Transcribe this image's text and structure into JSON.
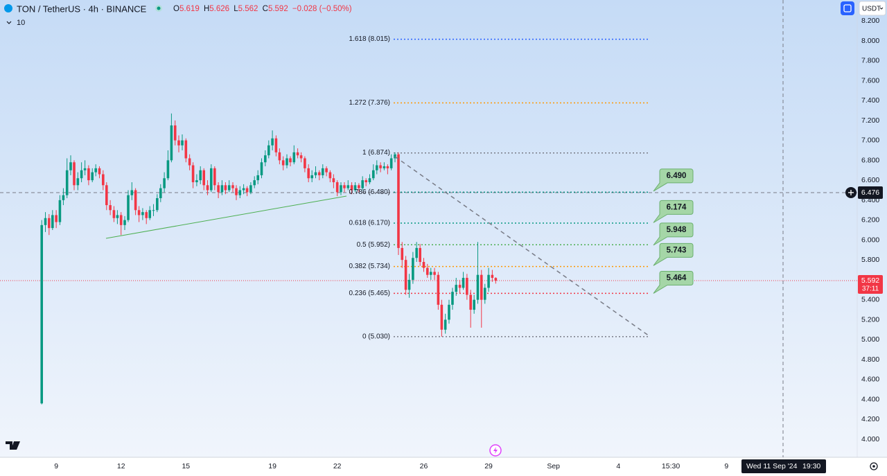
{
  "header": {
    "symbol": "TON / TetherUS · 4h · BINANCE",
    "ohlc_labels": [
      "O",
      "H",
      "L",
      "C"
    ],
    "change": "−0.028 (−0.50%)",
    "volume_toggle": "10",
    "currency": "USDT"
  },
  "chart_data": {
    "type": "candlestick",
    "x": [
      8.33,
      8.5,
      8.67,
      8.83,
      9,
      9.17,
      9.33,
      9.5,
      9.67,
      9.83,
      10,
      10.17,
      10.33,
      10.5,
      10.67,
      10.83,
      11,
      11.17,
      11.33,
      11.5,
      11.67,
      11.83,
      12,
      12.17,
      12.33,
      12.5,
      12.67,
      12.83,
      13,
      13.17,
      13.33,
      13.5,
      13.67,
      13.83,
      14,
      14.17,
      14.33,
      14.5,
      14.67,
      14.83,
      15,
      15.17,
      15.33,
      15.5,
      15.67,
      15.83,
      16,
      16.17,
      16.33,
      16.5,
      16.67,
      16.83,
      17,
      17.17,
      17.33,
      17.5,
      17.67,
      17.83,
      18,
      18.17,
      18.33,
      18.5,
      18.67,
      18.83,
      19,
      19.17,
      19.33,
      19.5,
      19.67,
      19.83,
      20,
      20.17,
      20.33,
      20.5,
      20.67,
      20.83,
      21,
      21.17,
      21.33,
      21.5,
      21.67,
      21.83,
      22,
      22.17,
      22.33,
      22.5,
      22.67,
      22.83,
      23,
      23.17,
      23.33,
      23.5,
      23.67,
      23.83,
      24,
      24.17,
      24.33,
      24.5,
      24.67,
      24.83,
      25,
      25.17,
      25.33,
      25.5,
      25.67,
      25.83,
      26,
      26.17,
      26.33,
      26.5,
      26.67,
      26.83,
      27,
      27.17,
      27.33,
      27.5,
      27.67,
      27.83,
      28,
      28.17,
      28.33,
      28.5,
      28.67,
      28.83,
      29,
      29.17,
      29.33
    ],
    "candles": [
      [
        4.36,
        6.2,
        4.35,
        6.15
      ],
      [
        6.15,
        6.28,
        6.08,
        6.22
      ],
      [
        6.22,
        6.26,
        6.05,
        6.12
      ],
      [
        6.12,
        6.3,
        6.1,
        6.25
      ],
      [
        6.25,
        6.3,
        6.12,
        6.18
      ],
      [
        6.18,
        6.45,
        6.15,
        6.4
      ],
      [
        6.4,
        6.52,
        6.35,
        6.45
      ],
      [
        6.45,
        6.82,
        6.42,
        6.7
      ],
      [
        6.7,
        6.85,
        6.65,
        6.78
      ],
      [
        6.78,
        6.8,
        6.5,
        6.55
      ],
      [
        6.55,
        6.68,
        6.5,
        6.62
      ],
      [
        6.62,
        6.78,
        6.58,
        6.7
      ],
      [
        6.7,
        6.8,
        6.65,
        6.72
      ],
      [
        6.72,
        6.75,
        6.55,
        6.6
      ],
      [
        6.6,
        6.72,
        6.58,
        6.68
      ],
      [
        6.68,
        6.76,
        6.64,
        6.72
      ],
      [
        6.72,
        6.74,
        6.62,
        6.66
      ],
      [
        6.66,
        6.7,
        6.5,
        6.55
      ],
      [
        6.55,
        6.58,
        6.3,
        6.35
      ],
      [
        6.35,
        6.4,
        6.25,
        6.3
      ],
      [
        6.3,
        6.34,
        6.18,
        6.22
      ],
      [
        6.22,
        6.3,
        6.16,
        6.25
      ],
      [
        6.25,
        6.28,
        6.05,
        6.15
      ],
      [
        6.15,
        6.24,
        6.1,
        6.2
      ],
      [
        6.2,
        6.5,
        6.18,
        6.45
      ],
      [
        6.45,
        6.58,
        6.4,
        6.5
      ],
      [
        6.5,
        6.52,
        6.25,
        6.3
      ],
      [
        6.3,
        6.34,
        6.18,
        6.25
      ],
      [
        6.25,
        6.32,
        6.2,
        6.28
      ],
      [
        6.28,
        6.3,
        6.16,
        6.22
      ],
      [
        6.22,
        6.34,
        6.2,
        6.3
      ],
      [
        6.3,
        6.36,
        6.24,
        6.3
      ],
      [
        6.3,
        6.46,
        6.28,
        6.42
      ],
      [
        6.42,
        6.56,
        6.38,
        6.52
      ],
      [
        6.52,
        6.68,
        6.48,
        6.62
      ],
      [
        6.62,
        6.9,
        6.6,
        6.8
      ],
      [
        6.8,
        7.27,
        6.78,
        7.15
      ],
      [
        7.15,
        7.2,
        6.95,
        7.0
      ],
      [
        7.0,
        7.05,
        6.88,
        6.95
      ],
      [
        6.95,
        7.06,
        6.9,
        7.0
      ],
      [
        7.0,
        7.02,
        6.78,
        6.82
      ],
      [
        6.82,
        6.86,
        6.7,
        6.75
      ],
      [
        6.75,
        6.78,
        6.52,
        6.58
      ],
      [
        6.58,
        6.66,
        6.54,
        6.6
      ],
      [
        6.6,
        6.74,
        6.56,
        6.7
      ],
      [
        6.7,
        6.72,
        6.5,
        6.55
      ],
      [
        6.55,
        6.6,
        6.45,
        6.5
      ],
      [
        6.5,
        6.76,
        6.48,
        6.72
      ],
      [
        6.72,
        6.74,
        6.5,
        6.55
      ],
      [
        6.55,
        6.58,
        6.42,
        6.48
      ],
      [
        6.48,
        6.6,
        6.45,
        6.55
      ],
      [
        6.55,
        6.58,
        6.46,
        6.5
      ],
      [
        6.5,
        6.6,
        6.48,
        6.55
      ],
      [
        6.55,
        6.58,
        6.48,
        6.52
      ],
      [
        6.52,
        6.55,
        6.4,
        6.45
      ],
      [
        6.45,
        6.54,
        6.42,
        6.5
      ],
      [
        6.5,
        6.56,
        6.46,
        6.52
      ],
      [
        6.52,
        6.54,
        6.44,
        6.48
      ],
      [
        6.48,
        6.58,
        6.46,
        6.55
      ],
      [
        6.55,
        6.64,
        6.52,
        6.6
      ],
      [
        6.6,
        6.7,
        6.56,
        6.65
      ],
      [
        6.65,
        6.82,
        6.62,
        6.78
      ],
      [
        6.78,
        6.9,
        6.74,
        6.85
      ],
      [
        6.85,
        7.0,
        6.82,
        6.95
      ],
      [
        6.95,
        7.1,
        6.9,
        7.02
      ],
      [
        7.02,
        7.05,
        6.84,
        6.88
      ],
      [
        6.88,
        6.92,
        6.76,
        6.8
      ],
      [
        6.8,
        6.84,
        6.7,
        6.75
      ],
      [
        6.75,
        6.86,
        6.72,
        6.82
      ],
      [
        6.82,
        6.84,
        6.74,
        6.78
      ],
      [
        6.78,
        6.95,
        6.76,
        6.88
      ],
      [
        6.88,
        6.92,
        6.82,
        6.85
      ],
      [
        6.85,
        6.88,
        6.78,
        6.82
      ],
      [
        6.82,
        6.84,
        6.68,
        6.72
      ],
      [
        6.72,
        6.76,
        6.58,
        6.62
      ],
      [
        6.62,
        6.7,
        6.58,
        6.65
      ],
      [
        6.65,
        6.74,
        6.62,
        6.68
      ],
      [
        6.68,
        6.7,
        6.6,
        6.65
      ],
      [
        6.65,
        6.76,
        6.62,
        6.72
      ],
      [
        6.72,
        6.74,
        6.64,
        6.68
      ],
      [
        6.68,
        6.7,
        6.58,
        6.62
      ],
      [
        6.62,
        6.66,
        6.52,
        6.58
      ],
      [
        6.58,
        6.6,
        6.44,
        6.48
      ],
      [
        6.48,
        6.58,
        6.45,
        6.55
      ],
      [
        6.55,
        6.58,
        6.48,
        6.52
      ],
      [
        6.52,
        6.6,
        6.5,
        6.55
      ],
      [
        6.55,
        6.58,
        6.46,
        6.5
      ],
      [
        6.5,
        6.58,
        6.48,
        6.55
      ],
      [
        6.55,
        6.57,
        6.48,
        6.52
      ],
      [
        6.52,
        6.64,
        6.5,
        6.6
      ],
      [
        6.6,
        6.62,
        6.54,
        6.58
      ],
      [
        6.58,
        6.66,
        6.56,
        6.62
      ],
      [
        6.62,
        6.76,
        6.6,
        6.7
      ],
      [
        6.7,
        6.8,
        6.66,
        6.75
      ],
      [
        6.75,
        6.78,
        6.68,
        6.72
      ],
      [
        6.72,
        6.78,
        6.7,
        6.74
      ],
      [
        6.74,
        6.76,
        6.66,
        6.72
      ],
      [
        6.72,
        6.86,
        6.7,
        6.82
      ],
      [
        6.82,
        6.88,
        6.78,
        6.86
      ],
      [
        6.86,
        6.88,
        5.85,
        5.92
      ],
      [
        5.92,
        5.98,
        5.72,
        5.8
      ],
      [
        5.8,
        5.84,
        5.45,
        5.5
      ],
      [
        5.5,
        5.66,
        5.42,
        5.6
      ],
      [
        5.6,
        5.88,
        5.56,
        5.82
      ],
      [
        5.82,
        5.98,
        5.78,
        5.92
      ],
      [
        5.92,
        5.96,
        5.74,
        5.78
      ],
      [
        5.78,
        5.82,
        5.68,
        5.72
      ],
      [
        5.72,
        5.76,
        5.62,
        5.65
      ],
      [
        5.65,
        5.72,
        5.6,
        5.68
      ],
      [
        5.68,
        5.72,
        5.6,
        5.65
      ],
      [
        5.65,
        5.68,
        5.3,
        5.35
      ],
      [
        5.35,
        5.4,
        5.03,
        5.1
      ],
      [
        5.1,
        5.26,
        5.06,
        5.2
      ],
      [
        5.2,
        5.4,
        5.16,
        5.35
      ],
      [
        5.35,
        5.52,
        5.3,
        5.48
      ],
      [
        5.48,
        5.62,
        5.44,
        5.55
      ],
      [
        5.55,
        5.6,
        5.46,
        5.52
      ],
      [
        5.52,
        5.68,
        5.5,
        5.62
      ],
      [
        5.62,
        5.66,
        5.4,
        5.45
      ],
      [
        5.45,
        5.5,
        5.12,
        5.3
      ],
      [
        5.3,
        5.45,
        5.26,
        5.4
      ],
      [
        5.4,
        5.98,
        5.36,
        5.65
      ],
      [
        5.65,
        5.7,
        5.12,
        5.4
      ],
      [
        5.4,
        5.56,
        5.36,
        5.52
      ],
      [
        5.52,
        5.72,
        5.48,
        5.65
      ],
      [
        5.65,
        5.7,
        5.58,
        5.62
      ],
      [
        5.619,
        5.626,
        5.562,
        5.592
      ]
    ],
    "up_color": "#089981",
    "down_color": "#f23645",
    "xlim": [
      6.4,
      46.05
    ],
    "xticks": [
      9,
      12,
      15,
      19,
      22,
      26,
      29,
      {
        "value": 32,
        "label": "Sep"
      },
      {
        "value": 35,
        "label": "4"
      },
      {
        "value": 37.43,
        "label": "15:30"
      },
      {
        "value": 40,
        "label": "9"
      }
    ],
    "ylim": [
      3.819,
      8.409
    ],
    "yticks": [
      {
        "value": 8.2,
        "label": "8.200"
      },
      {
        "value": 8.0,
        "label": "8.000"
      },
      {
        "value": 7.8,
        "label": "7.800"
      },
      {
        "value": 7.6,
        "label": "7.600"
      },
      {
        "value": 7.4,
        "label": "7.400"
      },
      {
        "value": 7.2,
        "label": "7.200"
      },
      {
        "value": 7.0,
        "label": "7.000"
      },
      {
        "value": 6.8,
        "label": "6.800"
      },
      {
        "value": 6.6,
        "label": "6.600"
      },
      {
        "value": 6.4,
        "label": "6.400"
      },
      {
        "value": 6.2,
        "label": "6.200"
      },
      {
        "value": 6.0,
        "label": "6.000"
      },
      {
        "value": 5.8,
        "label": "5.800"
      },
      {
        "value": 5.6,
        "label": "5.600"
      },
      {
        "value": 5.4,
        "label": "5.400"
      },
      {
        "value": 5.2,
        "label": "5.200"
      },
      {
        "value": 5.0,
        "label": "5.000"
      },
      {
        "value": 4.8,
        "label": "4.800"
      },
      {
        "value": 4.6,
        "label": "4.600"
      },
      {
        "value": 4.4,
        "label": "4.400"
      },
      {
        "value": 4.2,
        "label": "4.200"
      },
      {
        "value": 4.0,
        "label": "4.000"
      }
    ],
    "fib_levels": [
      {
        "label": "1.618 (8.015)",
        "value": 8.015,
        "color": "#2962ff"
      },
      {
        "label": "1.272 (7.376)",
        "value": 7.376,
        "color": "#ff9800"
      },
      {
        "label": "1 (6.874)",
        "value": 6.874,
        "color": "#787b86"
      },
      {
        "label": "0.786 (6.480)",
        "value": 6.48,
        "color": "#00897b"
      },
      {
        "label": "0.618 (6.170)",
        "value": 6.17,
        "color": "#089981"
      },
      {
        "label": "0.5 (5.952)",
        "value": 5.952,
        "color": "#4caf50"
      },
      {
        "label": "0.382 (5.734)",
        "value": 5.734,
        "color": "#ff9800"
      },
      {
        "label": "0.236 (5.465)",
        "value": 5.465,
        "color": "#f23645"
      },
      {
        "label": "0 (5.030)",
        "value": 5.03,
        "color": "#787b86"
      }
    ],
    "targets": {
      "values": [
        6.49,
        6.174,
        5.948,
        5.743,
        5.464
      ],
      "value_labels": [
        "6.490",
        "6.174",
        "5.948",
        "5.743",
        "5.464"
      ],
      "color": "#a5d6a7"
    },
    "crosshair": {
      "value": 6.476,
      "date": "Wed 11 Sep '24",
      "time": "19:30"
    },
    "countdown": "37:11"
  }
}
